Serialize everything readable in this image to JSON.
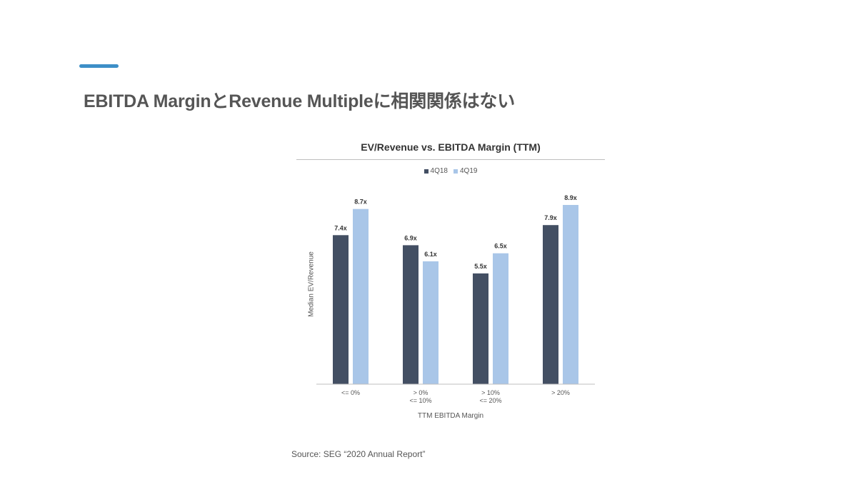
{
  "slide": {
    "title": "EBITDA MarginとRevenue Multipleに相関関係はない",
    "accent_color": "#3d8fc7",
    "source": "Source: SEG “2020 Annual Report”"
  },
  "chart_data": {
    "type": "bar",
    "title": "EV/Revenue vs. EBITDA Margin (TTM)",
    "xlabel": "TTM EBITDA Margin",
    "ylabel": "Median EV/Revenue",
    "categories": [
      [
        "<= 0%"
      ],
      [
        "> 0%",
        "<= 10%"
      ],
      [
        "> 10%",
        "<= 20%"
      ],
      [
        "> 20%"
      ]
    ],
    "series": [
      {
        "name": "4Q18",
        "color": "#434f63",
        "values": [
          7.4,
          6.9,
          5.5,
          7.9
        ],
        "labels": [
          "7.4x",
          "6.9x",
          "5.5x",
          "7.9x"
        ]
      },
      {
        "name": "4Q19",
        "color": "#a9c6e8",
        "values": [
          8.7,
          6.1,
          6.5,
          8.9
        ],
        "labels": [
          "8.7x",
          "6.1x",
          "6.5x",
          "8.9x"
        ]
      }
    ],
    "ylim": [
      0,
      10
    ],
    "grid": false,
    "legend_position": "top"
  }
}
